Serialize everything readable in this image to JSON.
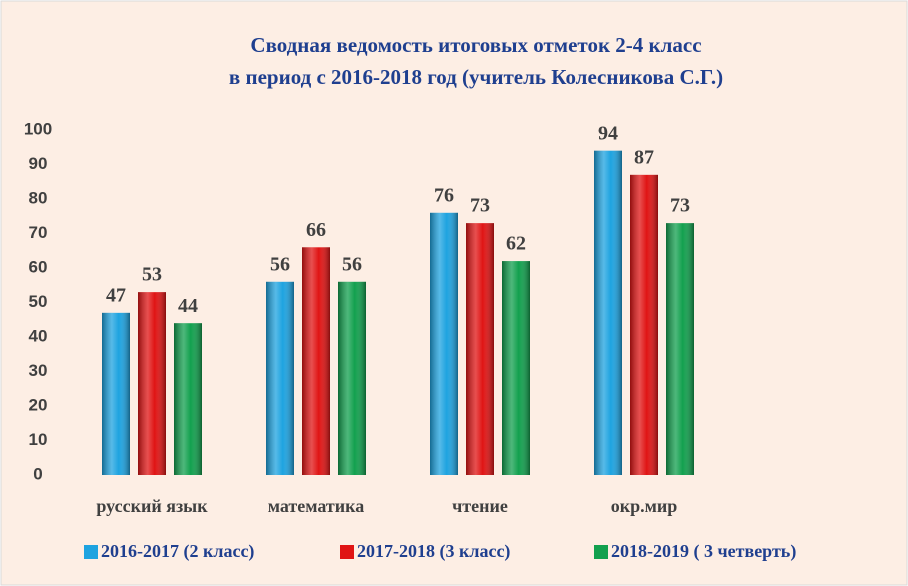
{
  "chart_data": {
    "type": "bar",
    "title": [
      "Сводная ведомость итоговых отметок 2-4 класс",
      "в период с 2016-2018 год (учитель Колесникова С.Г.)"
    ],
    "categories": [
      "русский язык",
      "математика",
      "чтение",
      "окр.мир",
      null
    ],
    "series": [
      {
        "name": "2016-2017 (2 класс)",
        "color": "#1ea3e0",
        "values": [
          47,
          56,
          76,
          94,
          null
        ]
      },
      {
        "name": "2017-2018 (3 класс)",
        "color": "#e01414",
        "values": [
          53,
          66,
          73,
          87,
          null
        ]
      },
      {
        "name": "2018-2019 ( 3 четверть)",
        "color": "#12a04e",
        "values": [
          44,
          56,
          62,
          73,
          null
        ]
      }
    ],
    "ylim": [
      0,
      100
    ],
    "yticks": [
      0,
      10,
      20,
      30,
      40,
      50,
      60,
      70,
      80,
      90,
      100
    ],
    "legend": "bottom"
  }
}
